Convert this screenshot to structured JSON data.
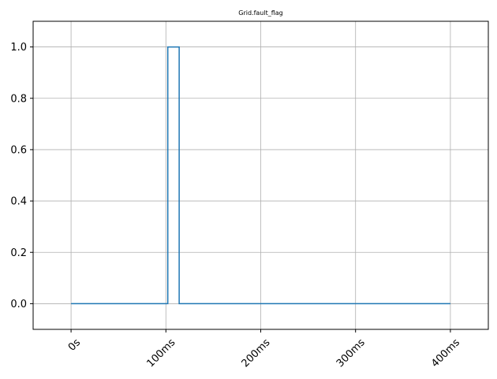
{
  "chart_data": {
    "type": "line",
    "step": true,
    "title": "Grid.fault_flag",
    "xlabel": "",
    "ylabel": "",
    "x_unit": "ms",
    "xlim": [
      -40,
      440
    ],
    "ylim": [
      -0.1,
      1.1
    ],
    "x_ticks": [
      0,
      100,
      200,
      300,
      400
    ],
    "x_tick_labels": [
      "0s",
      "100ms",
      "200ms",
      "300ms",
      "400ms"
    ],
    "y_ticks": [
      0.0,
      0.2,
      0.4,
      0.6,
      0.8,
      1.0
    ],
    "y_tick_labels": [
      "0.0",
      "0.2",
      "0.4",
      "0.6",
      "0.8",
      "1.0"
    ],
    "grid": true,
    "series": [
      {
        "color": "#1f77b4",
        "x": [
          0,
          102,
          102,
          114,
          114,
          400
        ],
        "y": [
          0,
          0,
          1,
          1,
          0,
          0
        ]
      }
    ]
  }
}
